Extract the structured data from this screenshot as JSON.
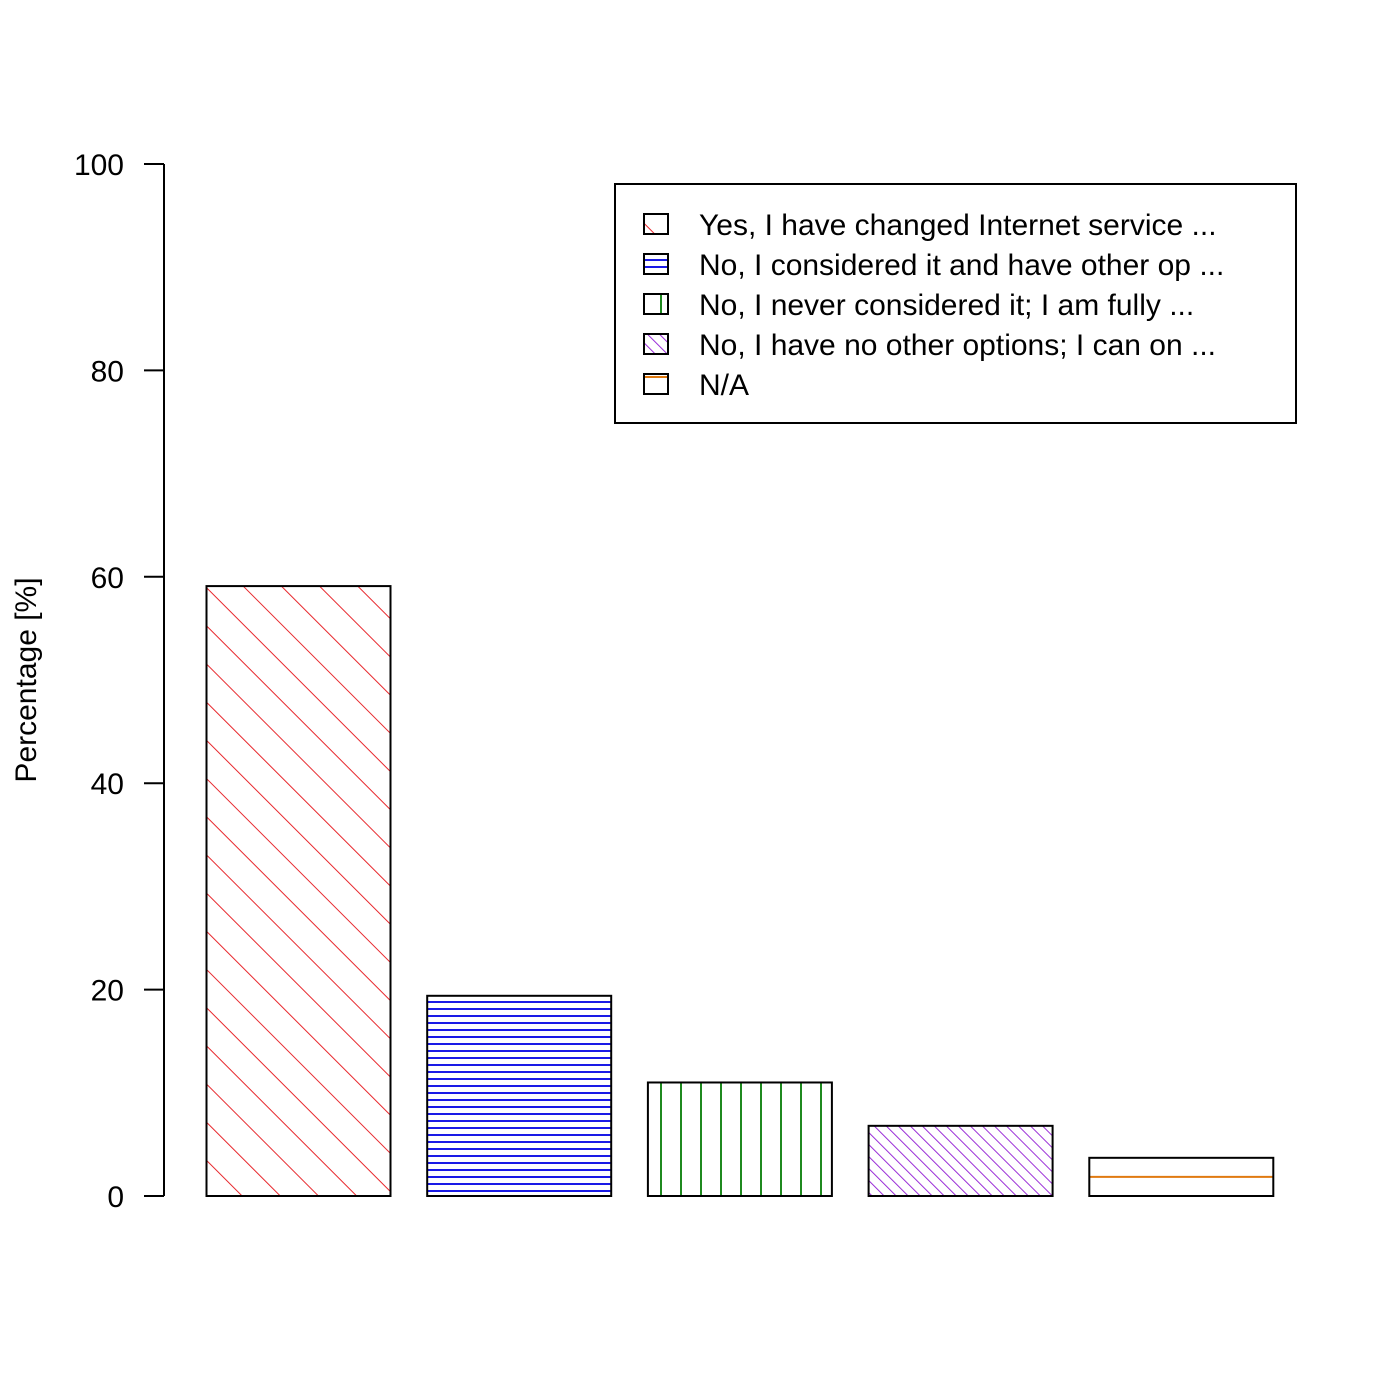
{
  "chart_data": {
    "type": "bar",
    "title": "",
    "xlabel": "",
    "ylabel": "Percentage [%]",
    "ylim": [
      0,
      100
    ],
    "yticks": [
      0,
      20,
      40,
      60,
      80,
      100
    ],
    "grid": false,
    "legend_position": "top-right",
    "categories": [
      "Yes, I have changed Internet service  ...",
      "No, I considered it and have other op ...",
      "No, I never considered it; I am fully ...",
      "No, I have no other options; I can on ...",
      "N/A"
    ],
    "values": [
      59.1,
      19.4,
      11.0,
      6.8,
      3.7
    ],
    "colors": [
      "#e8292e",
      "#1a1ae6",
      "#1f8a1f",
      "#9b30d8",
      "#e07a10"
    ],
    "patterns": [
      "diagonal-wide",
      "horizontal",
      "vertical",
      "diagonal-dense",
      "horizontal-single"
    ]
  }
}
